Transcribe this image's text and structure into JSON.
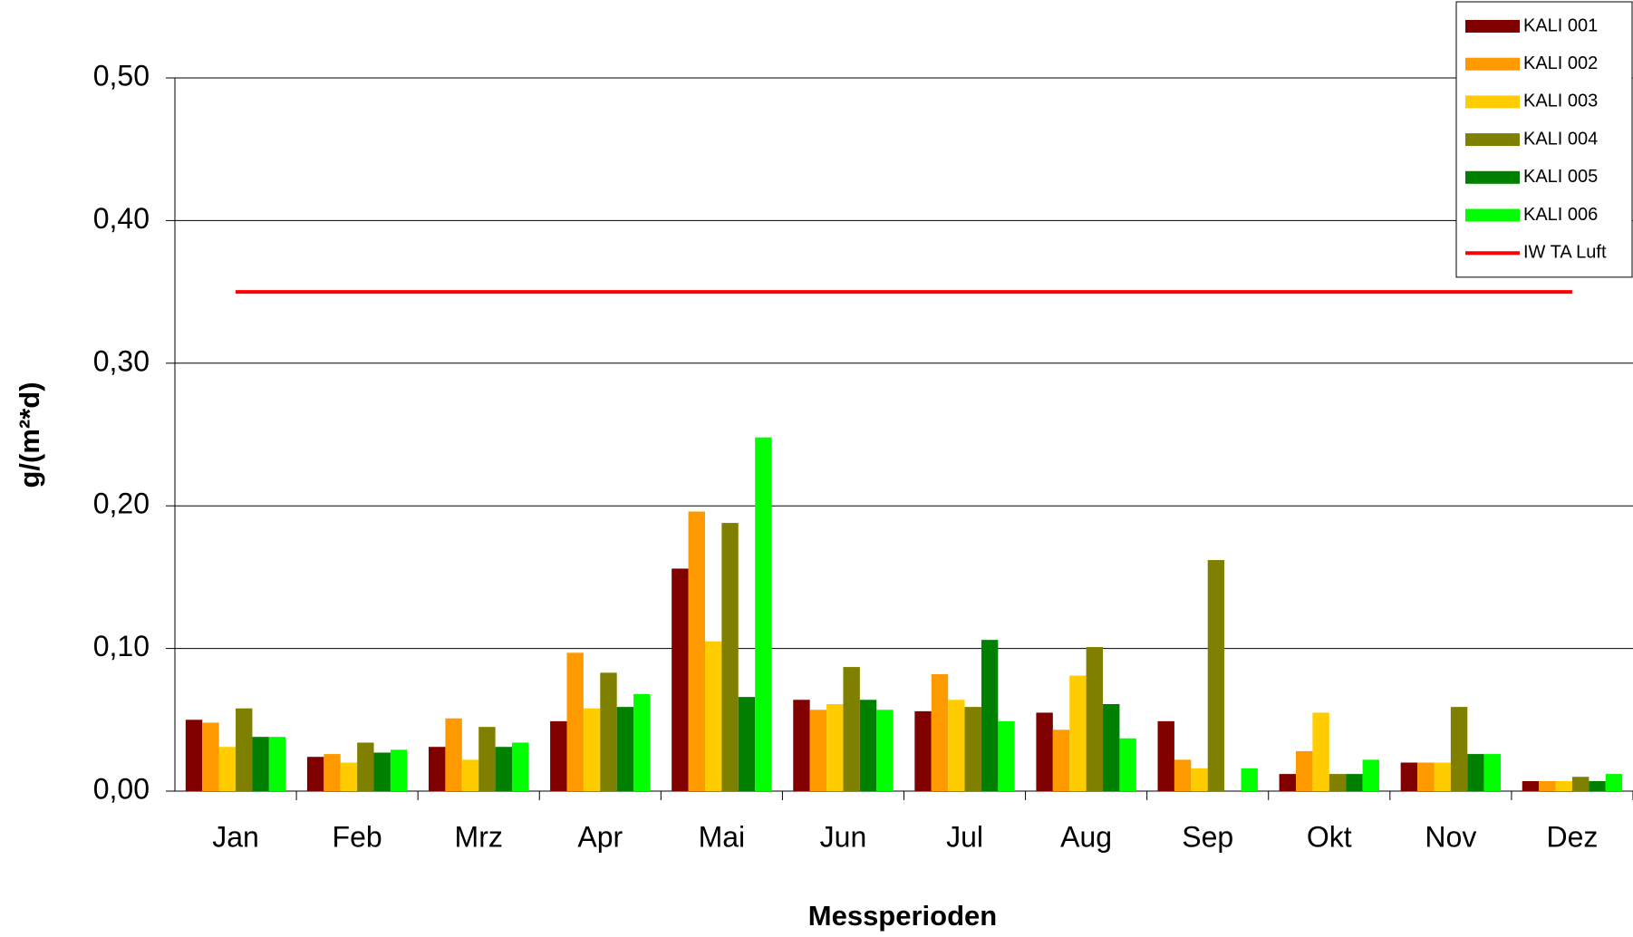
{
  "chart_data": {
    "type": "bar",
    "x_label": "Messperioden",
    "y_label": "g/(m²*d)",
    "categories": [
      "Jan",
      "Feb",
      "Mrz",
      "Apr",
      "Mai",
      "Jun",
      "Jul",
      "Aug",
      "Sep",
      "Okt",
      "Nov",
      "Dez"
    ],
    "series": [
      {
        "name": "KALI 001",
        "color": "#800000",
        "values": [
          0.05,
          0.024,
          0.031,
          0.049,
          0.156,
          0.064,
          0.056,
          0.055,
          0.049,
          0.012,
          0.02,
          0.007
        ]
      },
      {
        "name": "KALI 002",
        "color": "#ff9900",
        "values": [
          0.048,
          0.026,
          0.051,
          0.097,
          0.196,
          0.057,
          0.082,
          0.043,
          0.022,
          0.028,
          0.02,
          0.007
        ]
      },
      {
        "name": "KALI 003",
        "color": "#ffcc00",
        "values": [
          0.031,
          0.02,
          0.022,
          0.058,
          0.105,
          0.061,
          0.064,
          0.081,
          0.016,
          0.055,
          0.02,
          0.007
        ]
      },
      {
        "name": "KALI 004",
        "color": "#808000",
        "values": [
          0.058,
          0.034,
          0.045,
          0.083,
          0.188,
          0.087,
          0.059,
          0.101,
          0.162,
          0.012,
          0.059,
          0.01
        ]
      },
      {
        "name": "KALI 005",
        "color": "#008000",
        "values": [
          0.038,
          0.027,
          0.031,
          0.059,
          0.066,
          0.064,
          0.106,
          0.061,
          null,
          0.012,
          0.026,
          0.007
        ]
      },
      {
        "name": "KALI 006",
        "color": "#00ff00",
        "values": [
          0.038,
          0.029,
          0.034,
          0.068,
          0.248,
          0.057,
          0.049,
          0.037,
          0.016,
          0.022,
          0.026,
          0.012
        ]
      },
      {
        "name": "IW TA Luft",
        "color": "#ff0000",
        "type": "line",
        "values": [
          0.35,
          0.35,
          0.35,
          0.35,
          0.35,
          0.35,
          0.35,
          0.35,
          0.35,
          0.35,
          0.35,
          0.35
        ]
      }
    ],
    "ylim": [
      0,
      0.5
    ],
    "yticks": [
      {
        "value": 0,
        "label": "0,00"
      },
      {
        "value": 0.1,
        "label": "0,10"
      },
      {
        "value": 0.2,
        "label": "0,20"
      },
      {
        "value": 0.3,
        "label": "0,30"
      },
      {
        "value": 0.4,
        "label": "0,40"
      },
      {
        "value": 0.5,
        "label": "0,50"
      }
    ],
    "grid": true,
    "legend": "top-right"
  }
}
